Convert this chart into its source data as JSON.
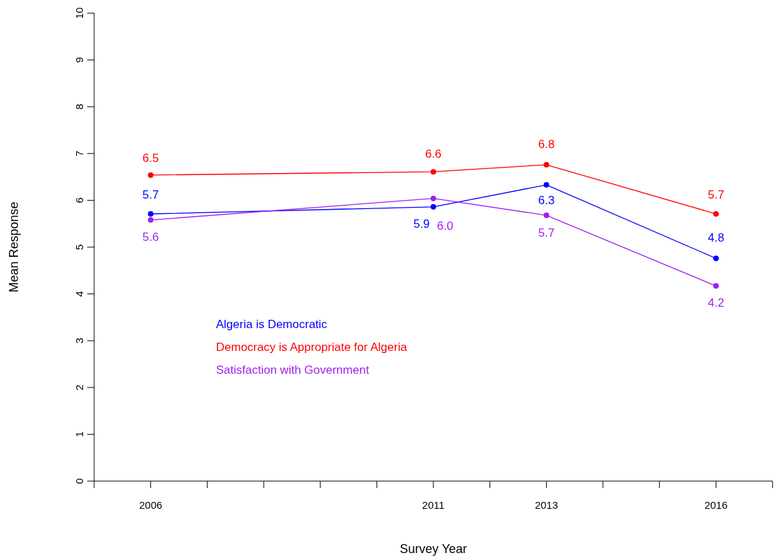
{
  "chart_data": {
    "type": "line",
    "xlabel": "Survey Year",
    "ylabel": "Mean Response",
    "x": [
      2006,
      2011,
      2013,
      2016
    ],
    "series": [
      {
        "name": "Algeria is Democratic",
        "color": "#0000ff",
        "values": [
          5.71,
          5.86,
          6.33,
          4.76
        ],
        "value_labels": [
          "5.7",
          "5.9",
          "6.3",
          "4.8"
        ]
      },
      {
        "name": "Democracy is Appropriate for Algeria",
        "color": "#ff0000",
        "values": [
          6.54,
          6.61,
          6.76,
          5.71
        ],
        "value_labels": [
          "6.5",
          "6.6",
          "6.8",
          "5.7"
        ]
      },
      {
        "name": "Satisfaction with Government",
        "color": "#a020f0",
        "values": [
          5.58,
          6.04,
          5.68,
          4.17
        ],
        "value_labels": [
          "5.6",
          "6.0",
          "5.7",
          "4.2"
        ]
      }
    ],
    "xlim": [
      2005,
      2017
    ],
    "xticks": [
      {
        "value": 2005,
        "label": null
      },
      2006,
      {
        "value": 2007,
        "label": null
      },
      {
        "value": 2008,
        "label": null
      },
      {
        "value": 2009,
        "label": null
      },
      {
        "value": 2010,
        "label": null
      },
      2011,
      {
        "value": 2012,
        "label": null
      },
      2013,
      {
        "value": 2014,
        "label": null
      },
      {
        "value": 2015,
        "label": null
      },
      2016,
      {
        "value": 2017,
        "label": null
      }
    ],
    "ylim": [
      0,
      10
    ],
    "yticks": [
      0,
      1,
      2,
      3,
      4,
      5,
      6,
      7,
      8,
      9,
      10
    ],
    "grid": false,
    "legend": "left",
    "marker": "circle",
    "line_style": "solid"
  }
}
